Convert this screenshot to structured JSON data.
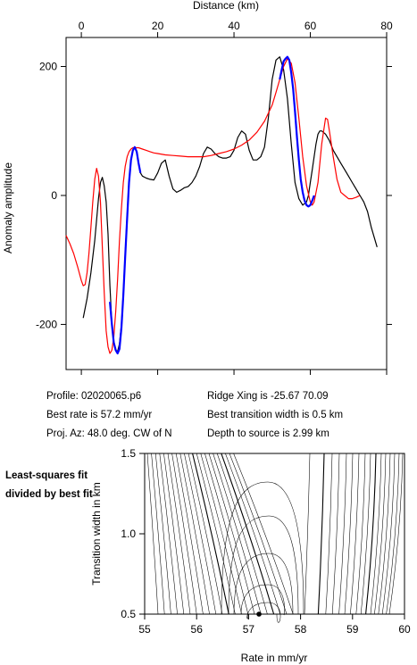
{
  "chart_data": [
    {
      "type": "line",
      "title": "",
      "xlabel": "Distance (km)",
      "ylabel": "Anomaly amplitude",
      "xlim": [
        -4,
        80
      ],
      "ylim": [
        -270,
        245
      ],
      "x_ticks": [
        0,
        20,
        40,
        60,
        80
      ],
      "y_ticks": [
        -200,
        0,
        200
      ],
      "x_tick_labels": [
        "0",
        "20",
        "40",
        "60",
        "80"
      ],
      "y_tick_labels": [
        "-200",
        "0",
        "200"
      ],
      "series": [
        {
          "color": "#000000",
          "x": [
            0.5,
            1.5,
            2.5,
            3.5,
            4.5,
            5.0,
            5.5,
            6.0,
            6.5,
            7.0,
            7.5,
            8.0,
            8.5,
            9.0,
            9.5,
            10.0,
            10.5,
            11.0,
            11.5,
            12.0,
            12.5,
            13.0,
            13.5,
            14.0,
            14.5,
            15.0,
            15.5,
            16.0,
            17.0,
            18.0,
            19.0,
            20.0,
            21.0,
            22.0,
            23.0,
            24.0,
            25.0,
            26.0,
            27.0,
            28.0,
            29.0,
            30.0,
            31.0,
            32.0,
            33.0,
            34.0,
            35.0,
            36.0,
            37.0,
            38.0,
            39.0,
            40.0,
            41.0,
            42.0,
            43.0,
            44.0,
            45.0,
            46.0,
            47.0,
            48.0,
            49.0,
            50.0,
            51.0,
            52.0,
            53.0,
            54.0,
            55.0,
            56.0,
            57.0,
            58.0,
            59.0,
            59.5,
            60.0,
            60.5,
            61.0,
            61.5,
            62.0,
            62.5,
            63.0,
            64.0,
            65.0,
            66.0,
            67.0,
            68.0,
            69.0,
            70.0,
            71.0,
            72.0,
            73.0,
            74.0,
            75.0,
            76.0,
            77.5
          ],
          "y": [
            -190,
            -160,
            -120,
            -70,
            -5,
            20,
            28,
            15,
            -10,
            -60,
            -140,
            -200,
            -228,
            -240,
            -242,
            -230,
            -200,
            -150,
            -90,
            -30,
            20,
            55,
            70,
            75,
            68,
            50,
            35,
            30,
            27,
            25,
            24,
            35,
            50,
            55,
            30,
            10,
            5,
            8,
            12,
            14,
            20,
            30,
            45,
            65,
            75,
            72,
            65,
            60,
            58,
            58,
            60,
            70,
            90,
            100,
            95,
            70,
            55,
            55,
            60,
            75,
            120,
            180,
            210,
            215,
            195,
            150,
            80,
            20,
            -5,
            -15,
            -10,
            0,
            20,
            40,
            60,
            80,
            95,
            100,
            100,
            95,
            85,
            70,
            60,
            50,
            40,
            30,
            20,
            10,
            0,
            -10,
            -25,
            -50,
            -80
          ]
        },
        {
          "color": "#ff0000",
          "x": [
            -4.0,
            -3.0,
            -2.0,
            -1.0,
            0.0,
            0.5,
            1.0,
            1.5,
            2.0,
            2.5,
            3.0,
            3.5,
            4.0,
            4.5,
            5.0,
            5.5,
            6.0,
            6.5,
            7.0,
            7.5,
            8.0,
            8.5,
            9.0,
            9.5,
            10.0,
            10.5,
            11.0,
            11.5,
            12.0,
            12.5,
            13.0,
            13.5,
            14.0,
            15.0,
            16.0,
            17.0,
            18.0,
            19.0,
            20.0,
            22.0,
            24.0,
            26.0,
            28.0,
            30.0,
            32.0,
            34.0,
            36.0,
            38.0,
            40.0,
            42.0,
            44.0,
            46.0,
            48.0,
            50.0,
            51.0,
            52.0,
            53.0,
            54.0,
            55.0,
            56.0,
            57.0,
            58.0,
            59.0,
            60.0,
            60.5,
            61.0,
            62.0,
            63.0,
            64.0,
            64.5,
            65.0,
            66.0,
            67.0,
            68.0,
            69.0,
            70.0,
            71.0,
            72.0,
            73.0
          ],
          "y": [
            -62,
            -75,
            -90,
            -110,
            -132,
            -140,
            -138,
            -120,
            -90,
            -50,
            -10,
            25,
            42,
            30,
            -10,
            -80,
            -150,
            -210,
            -235,
            -245,
            -240,
            -220,
            -180,
            -130,
            -70,
            -20,
            20,
            45,
            60,
            68,
            72,
            74,
            74,
            74,
            72,
            70,
            68,
            66,
            65,
            63,
            62,
            61,
            60,
            60,
            60,
            62,
            65,
            68,
            72,
            78,
            86,
            98,
            115,
            140,
            160,
            180,
            200,
            212,
            205,
            175,
            120,
            60,
            15,
            -10,
            -15,
            -10,
            20,
            80,
            120,
            118,
            100,
            60,
            25,
            5,
            0,
            -5,
            -5,
            -3,
            0
          ]
        },
        {
          "color": "#0000ff",
          "x": [
            7.5,
            8.0,
            8.5,
            9.0,
            9.5,
            10.0,
            10.5,
            11.0,
            11.5,
            12.0,
            12.5,
            13.0,
            13.5,
            14.0,
            14.5,
            15.0,
            15.5
          ],
          "y": [
            -165,
            -200,
            -228,
            -240,
            -245,
            -238,
            -205,
            -155,
            -95,
            -35,
            20,
            55,
            70,
            75,
            68,
            50,
            35
          ]
        },
        {
          "color": "#0000ff",
          "x": [
            52.0,
            52.5,
            53.0,
            53.5,
            54.0,
            54.5,
            55.0,
            55.5,
            56.0,
            56.5,
            57.0,
            57.5,
            58.0,
            58.5,
            59.0,
            59.5,
            60.0,
            60.5,
            61.0
          ],
          "y": [
            180,
            195,
            208,
            212,
            215,
            210,
            190,
            165,
            130,
            90,
            55,
            25,
            5,
            -8,
            -15,
            -17,
            -15,
            -8,
            0
          ]
        }
      ]
    },
    {
      "type": "contour",
      "title": "",
      "xlabel": "Rate in mm/yr",
      "ylabel": "Transition width in km",
      "xlim": [
        55,
        60
      ],
      "ylim": [
        0.5,
        1.5
      ],
      "x_ticks": [
        55,
        56,
        57,
        58,
        59,
        60
      ],
      "y_ticks": [
        0.5,
        1.0,
        1.5
      ],
      "x_tick_labels": [
        "55",
        "56",
        "57",
        "58",
        "59",
        "60"
      ],
      "y_tick_labels": [
        "0.5",
        "1.0",
        "1.5"
      ],
      "best_fit_point": {
        "rate": 57.2,
        "width": 0.5
      },
      "note": "Least-squares fit divided by best fit"
    }
  ],
  "info": {
    "profile": "Profile: 02020065.p6",
    "best_rate": "Best rate is 57.2 mm/yr",
    "proj_az": "Proj. Az: 48.0 deg. CW of N",
    "ridge_xing": "Ridge Xing is -25.67 70.09",
    "transition": "Best transition width is 0.5 km",
    "depth": "Depth to source is   2.99 km"
  },
  "side_note": "Least-squares fit divided by best fit"
}
